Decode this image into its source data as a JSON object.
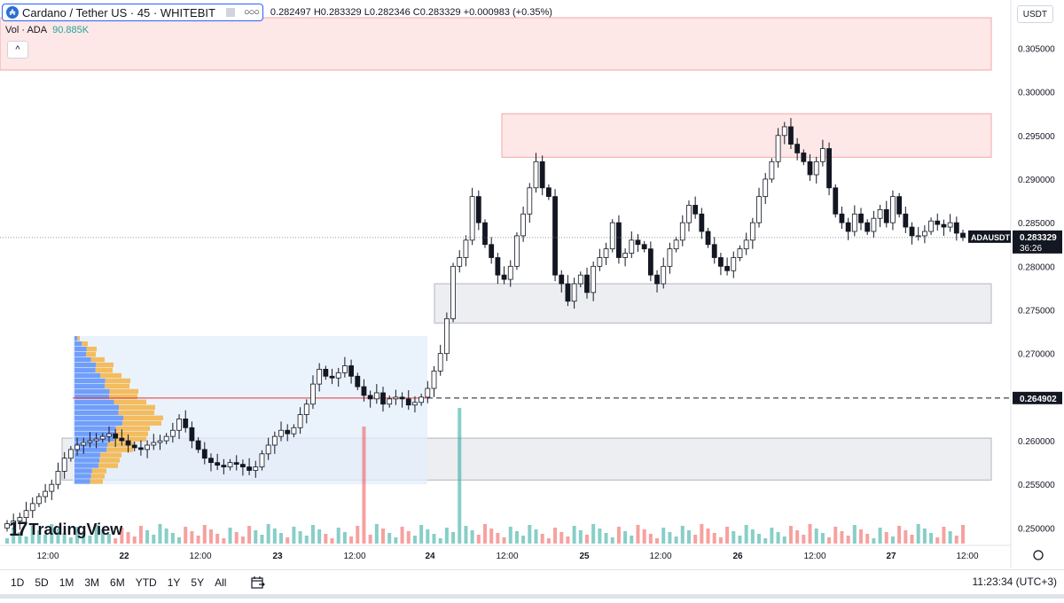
{
  "header": {
    "logo_letter": "₳",
    "symbol_title": "Cardano / Tether US · 45 · WHITEBIT",
    "ohlc": "0.282497 H0.283329 L0.282346 C0.283329 +0.000983 (+0.35%)",
    "dots": "○○○"
  },
  "volume_legend": {
    "label": "Vol · ADA",
    "value": "90.885K",
    "collapse": "^"
  },
  "currency": "USDT",
  "price_axis": {
    "ticks": [
      "0.305000",
      "0.300000",
      "0.295000",
      "0.290000",
      "0.285000",
      "0.280000",
      "0.275000",
      "0.270000",
      "0.265000",
      "0.260000",
      "0.255000",
      "0.250000"
    ],
    "current_label": "ADAUSDT",
    "current_price": "0.283329",
    "countdown": "36:26",
    "line_label": "0.264902"
  },
  "time_axis": {
    "ticks": [
      "12:00",
      "22",
      "12:00",
      "23",
      "12:00",
      "24",
      "12:00",
      "25",
      "12:00",
      "26",
      "12:00",
      "27",
      "12:00"
    ]
  },
  "brand": {
    "mark": "17",
    "text": "TradingView"
  },
  "toolbar": {
    "timeframes": [
      "1D",
      "5D",
      "1M",
      "3M",
      "6M",
      "YTD",
      "1Y",
      "5Y",
      "All"
    ],
    "clock": "11:23:34 (UTC+3)"
  },
  "colors": {
    "up": "#26a69a",
    "down": "#ef5350",
    "candle_body_up": "#ffffff",
    "candle_body_down": "#131722",
    "zone_red": "#fde7e7",
    "zone_gray": "#eceef2",
    "accent": "#2962ff"
  },
  "chart_data": {
    "type": "candlestick",
    "symbol": "Cardano / Tether US",
    "interval": "45",
    "exchange": "WHITEBIT",
    "last": {
      "open": 0.282497,
      "high": 0.283329,
      "low": 0.282346,
      "close": 0.283329,
      "change": 0.000983,
      "change_pct": 0.35
    },
    "ylim": [
      0.2475,
      0.3085
    ],
    "line_level": 0.264902,
    "volume_last": "90.885K",
    "resistance_zones": [
      [
        0.3025,
        0.3085
      ],
      [
        0.2925,
        0.2975
      ]
    ],
    "support_zones": [
      [
        0.2735,
        0.278
      ],
      [
        0.2555,
        0.2603
      ]
    ],
    "price_path": [
      0.2505,
      0.2508,
      0.2512,
      0.252,
      0.2528,
      0.2536,
      0.2542,
      0.255,
      0.2565,
      0.258,
      0.259,
      0.2595,
      0.2598,
      0.26,
      0.2602,
      0.2605,
      0.2608,
      0.2603,
      0.26,
      0.2595,
      0.2592,
      0.259,
      0.2595,
      0.2598,
      0.26,
      0.2605,
      0.2612,
      0.2625,
      0.2615,
      0.26,
      0.259,
      0.258,
      0.2575,
      0.2572,
      0.257,
      0.2575,
      0.2573,
      0.257,
      0.2566,
      0.257,
      0.2585,
      0.2595,
      0.2605,
      0.2612,
      0.2608,
      0.2615,
      0.263,
      0.2642,
      0.2665,
      0.2682,
      0.2674,
      0.2672,
      0.2678,
      0.2686,
      0.2674,
      0.2662,
      0.2652,
      0.2648,
      0.2655,
      0.2642,
      0.2648,
      0.265,
      0.2648,
      0.2641,
      0.2644,
      0.265,
      0.266,
      0.268,
      0.27,
      0.274,
      0.28,
      0.281,
      0.283,
      0.288,
      0.285,
      0.2825,
      0.281,
      0.279,
      0.2785,
      0.28,
      0.2835,
      0.286,
      0.289,
      0.292,
      0.289,
      0.288,
      0.279,
      0.278,
      0.276,
      0.278,
      0.279,
      0.277,
      0.28,
      0.281,
      0.282,
      0.285,
      0.281,
      0.2815,
      0.283,
      0.2825,
      0.282,
      0.279,
      0.278,
      0.28,
      0.282,
      0.283,
      0.285,
      0.287,
      0.286,
      0.284,
      0.2825,
      0.281,
      0.28,
      0.2795,
      0.281,
      0.282,
      0.283,
      0.285,
      0.288,
      0.29,
      0.292,
      0.295,
      0.296,
      0.294,
      0.293,
      0.292,
      0.2905,
      0.292,
      0.2935,
      0.289,
      0.286,
      0.285,
      0.284,
      0.286,
      0.285,
      0.284,
      0.2855,
      0.2865,
      0.285,
      0.288,
      0.286,
      0.2845,
      0.2835,
      0.2835,
      0.284,
      0.2852,
      0.2848,
      0.2845,
      0.285,
      0.2838,
      0.2833
    ],
    "volume_highlights": [
      {
        "index": 56,
        "value": "up-spike"
      },
      {
        "index": 71,
        "value": "down-spike"
      }
    ]
  }
}
